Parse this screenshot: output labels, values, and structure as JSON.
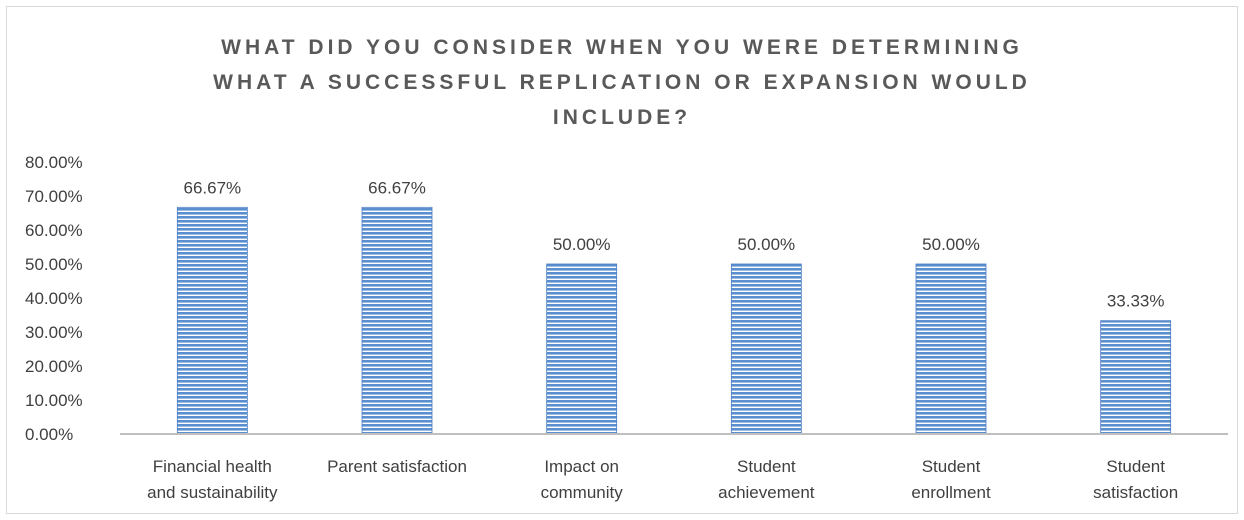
{
  "chart_data": {
    "type": "bar",
    "title_lines": [
      "WHAT DID YOU CONSIDER WHEN YOU WERE DETERMINING",
      "WHAT A SUCCESSFUL REPLICATION OR EXPANSION WOULD",
      "INCLUDE?"
    ],
    "categories": [
      [
        "Financial health",
        "and sustainability"
      ],
      [
        "Parent satisfaction"
      ],
      [
        "Impact on",
        "community"
      ],
      [
        "Student",
        "achievement"
      ],
      [
        "Student",
        "enrollment"
      ],
      [
        "Student",
        "satisfaction"
      ]
    ],
    "values": [
      66.67,
      66.67,
      50.0,
      50.0,
      50.0,
      33.33
    ],
    "data_labels": [
      "66.67%",
      "66.67%",
      "50.00%",
      "50.00%",
      "50.00%",
      "33.33%"
    ],
    "y_ticks": [
      "0.00%",
      "10.00%",
      "20.00%",
      "30.00%",
      "40.00%",
      "50.00%",
      "60.00%",
      "70.00%",
      "80.00%"
    ],
    "ylim": [
      0,
      80
    ],
    "grid": false,
    "legend": "none",
    "bar_color": "#5b8fd0",
    "bar_stripe_color": "#ffffff",
    "axis_color": "#bfbfbf"
  }
}
